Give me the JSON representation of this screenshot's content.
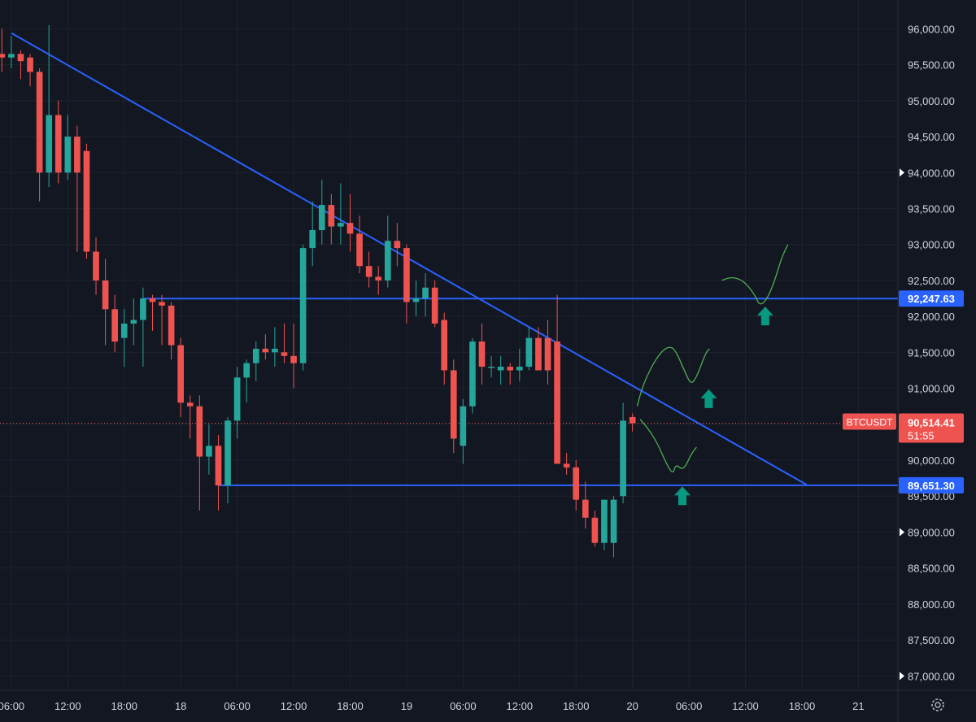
{
  "chart_data": {
    "type": "candlestick",
    "symbol": "BTCUSDT",
    "y_range": [
      86800,
      96400
    ],
    "y_ticks": [
      96000,
      95500,
      95000,
      94500,
      94000,
      93500,
      93000,
      92500,
      92000,
      91500,
      91000,
      90500,
      90000,
      89500,
      89000,
      88500,
      88000,
      87500,
      87000
    ],
    "y_tick_labels": [
      "96,000.00",
      "95,500.00",
      "95,000.00",
      "94,500.00",
      "94,000.00",
      "93,500.00",
      "93,000.00",
      "92,500.00",
      "92,000.00",
      "91,500.00",
      "91,000.00",
      "90,500.00",
      "90,000.00",
      "89,500.00",
      "89,000.00",
      "88,500.00",
      "88,000.00",
      "87,500.00",
      "87,000.00"
    ],
    "x_range_hours": [
      -1.2,
      94.2
    ],
    "x_ticks": [
      {
        "h": 0,
        "label": "06:00"
      },
      {
        "h": 6,
        "label": "12:00"
      },
      {
        "h": 12,
        "label": "18:00"
      },
      {
        "h": 18,
        "label": "18"
      },
      {
        "h": 24,
        "label": "06:00"
      },
      {
        "h": 30,
        "label": "12:00"
      },
      {
        "h": 36,
        "label": "18:00"
      },
      {
        "h": 42,
        "label": "19"
      },
      {
        "h": 48,
        "label": "06:00"
      },
      {
        "h": 54,
        "label": "12:00"
      },
      {
        "h": 60,
        "label": "18:00"
      },
      {
        "h": 66,
        "label": "20"
      },
      {
        "h": 72,
        "label": "06:00"
      },
      {
        "h": 78,
        "label": "12:00"
      },
      {
        "h": 84,
        "label": "18:00"
      },
      {
        "h": 90,
        "label": "21"
      }
    ],
    "candles": [
      {
        "h": -1,
        "o": 95650,
        "hi": 96000,
        "lo": 95400,
        "c": 95600
      },
      {
        "h": 0,
        "o": 95600,
        "hi": 95900,
        "lo": 95450,
        "c": 95650
      },
      {
        "h": 1,
        "o": 95650,
        "hi": 95700,
        "lo": 95300,
        "c": 95550
      },
      {
        "h": 2,
        "o": 95600,
        "hi": 95650,
        "lo": 95200,
        "c": 95400
      },
      {
        "h": 3,
        "o": 95400,
        "hi": 95450,
        "lo": 93600,
        "c": 94000
      },
      {
        "h": 4,
        "o": 94000,
        "hi": 96050,
        "lo": 93800,
        "c": 94800
      },
      {
        "h": 5,
        "o": 94800,
        "hi": 95000,
        "lo": 93850,
        "c": 94000
      },
      {
        "h": 6,
        "o": 94000,
        "hi": 94800,
        "lo": 93900,
        "c": 94500
      },
      {
        "h": 7,
        "o": 94500,
        "hi": 94650,
        "lo": 92900,
        "c": 94000
      },
      {
        "h": 8,
        "o": 94300,
        "hi": 94400,
        "lo": 92800,
        "c": 92900
      },
      {
        "h": 9,
        "o": 92900,
        "hi": 93100,
        "lo": 92300,
        "c": 92500
      },
      {
        "h": 10,
        "o": 92500,
        "hi": 92800,
        "lo": 91600,
        "c": 92100
      },
      {
        "h": 11,
        "o": 92100,
        "hi": 92300,
        "lo": 91500,
        "c": 91650
      },
      {
        "h": 12,
        "o": 91700,
        "hi": 92100,
        "lo": 91300,
        "c": 91900
      },
      {
        "h": 13,
        "o": 91900,
        "hi": 92250,
        "lo": 91600,
        "c": 91950
      },
      {
        "h": 14,
        "o": 91950,
        "hi": 92400,
        "lo": 91300,
        "c": 92250
      },
      {
        "h": 15,
        "o": 92250,
        "hi": 92300,
        "lo": 91800,
        "c": 92200
      },
      {
        "h": 16,
        "o": 92200,
        "hi": 92300,
        "lo": 91600,
        "c": 92150
      },
      {
        "h": 17,
        "o": 92150,
        "hi": 92200,
        "lo": 91400,
        "c": 91600
      },
      {
        "h": 18,
        "o": 91600,
        "hi": 91700,
        "lo": 90600,
        "c": 90800
      },
      {
        "h": 19,
        "o": 90800,
        "hi": 90900,
        "lo": 90300,
        "c": 90750
      },
      {
        "h": 20,
        "o": 90750,
        "hi": 90900,
        "lo": 89300,
        "c": 90050
      },
      {
        "h": 21,
        "o": 90050,
        "hi": 90500,
        "lo": 89800,
        "c": 90200
      },
      {
        "h": 22,
        "o": 90200,
        "hi": 90350,
        "lo": 89300,
        "c": 89650
      },
      {
        "h": 23,
        "o": 89650,
        "hi": 90600,
        "lo": 89400,
        "c": 90550
      },
      {
        "h": 24,
        "o": 90550,
        "hi": 91300,
        "lo": 90300,
        "c": 91150
      },
      {
        "h": 25,
        "o": 91150,
        "hi": 91400,
        "lo": 90800,
        "c": 91350
      },
      {
        "h": 26,
        "o": 91350,
        "hi": 91650,
        "lo": 91100,
        "c": 91550
      },
      {
        "h": 27,
        "o": 91550,
        "hi": 91750,
        "lo": 91400,
        "c": 91500
      },
      {
        "h": 28,
        "o": 91500,
        "hi": 91850,
        "lo": 91300,
        "c": 91550
      },
      {
        "h": 29,
        "o": 91500,
        "hi": 91900,
        "lo": 91350,
        "c": 91450
      },
      {
        "h": 30,
        "o": 91450,
        "hi": 91900,
        "lo": 91000,
        "c": 91350
      },
      {
        "h": 31,
        "o": 91350,
        "hi": 93000,
        "lo": 91250,
        "c": 92950
      },
      {
        "h": 32,
        "o": 92950,
        "hi": 93600,
        "lo": 92700,
        "c": 93200
      },
      {
        "h": 33,
        "o": 93200,
        "hi": 93900,
        "lo": 93000,
        "c": 93550
      },
      {
        "h": 34,
        "o": 93550,
        "hi": 93700,
        "lo": 93000,
        "c": 93250
      },
      {
        "h": 35,
        "o": 93250,
        "hi": 93850,
        "lo": 93000,
        "c": 93300
      },
      {
        "h": 36,
        "o": 93300,
        "hi": 93700,
        "lo": 92900,
        "c": 93150
      },
      {
        "h": 37,
        "o": 93150,
        "hi": 93400,
        "lo": 92600,
        "c": 92700
      },
      {
        "h": 38,
        "o": 92700,
        "hi": 92900,
        "lo": 92400,
        "c": 92550
      },
      {
        "h": 39,
        "o": 92550,
        "hi": 92700,
        "lo": 92300,
        "c": 92500
      },
      {
        "h": 40,
        "o": 92500,
        "hi": 93400,
        "lo": 92400,
        "c": 93050
      },
      {
        "h": 41,
        "o": 93050,
        "hi": 93300,
        "lo": 92700,
        "c": 92950
      },
      {
        "h": 42,
        "o": 92950,
        "hi": 93000,
        "lo": 91900,
        "c": 92200
      },
      {
        "h": 43,
        "o": 92200,
        "hi": 92500,
        "lo": 92000,
        "c": 92250
      },
      {
        "h": 44,
        "o": 92250,
        "hi": 92600,
        "lo": 92000,
        "c": 92400
      },
      {
        "h": 45,
        "o": 92400,
        "hi": 92500,
        "lo": 91850,
        "c": 91900
      },
      {
        "h": 46,
        "o": 91950,
        "hi": 92050,
        "lo": 91050,
        "c": 91250
      },
      {
        "h": 47,
        "o": 91250,
        "hi": 91400,
        "lo": 90100,
        "c": 90300
      },
      {
        "h": 48,
        "o": 90200,
        "hi": 90850,
        "lo": 89950,
        "c": 90750
      },
      {
        "h": 49,
        "o": 90750,
        "hi": 91700,
        "lo": 90650,
        "c": 91650
      },
      {
        "h": 50,
        "o": 91650,
        "hi": 91900,
        "lo": 91050,
        "c": 91300
      },
      {
        "h": 51,
        "o": 91300,
        "hi": 91450,
        "lo": 91150,
        "c": 91300
      },
      {
        "h": 52,
        "o": 91250,
        "hi": 91450,
        "lo": 91050,
        "c": 91300
      },
      {
        "h": 53,
        "o": 91300,
        "hi": 91350,
        "lo": 91050,
        "c": 91250
      },
      {
        "h": 54,
        "o": 91250,
        "hi": 91550,
        "lo": 91100,
        "c": 91300
      },
      {
        "h": 55,
        "o": 91300,
        "hi": 91850,
        "lo": 91250,
        "c": 91700
      },
      {
        "h": 56,
        "o": 91700,
        "hi": 91850,
        "lo": 91250,
        "c": 91250
      },
      {
        "h": 57,
        "o": 91700,
        "hi": 91950,
        "lo": 91050,
        "c": 91250
      },
      {
        "h": 58,
        "o": 91650,
        "hi": 92300,
        "lo": 90600,
        "c": 89950
      },
      {
        "h": 59,
        "o": 89950,
        "hi": 90100,
        "lo": 89800,
        "c": 89900
      },
      {
        "h": 60,
        "o": 89900,
        "hi": 90000,
        "lo": 89300,
        "c": 89450
      },
      {
        "h": 61,
        "o": 89450,
        "hi": 89700,
        "lo": 89050,
        "c": 89200
      },
      {
        "h": 62,
        "o": 89200,
        "hi": 89300,
        "lo": 88800,
        "c": 88850
      },
      {
        "h": 63,
        "o": 88850,
        "hi": 89350,
        "lo": 88750,
        "c": 89450
      },
      {
        "h": 64,
        "o": 88850,
        "hi": 89500,
        "lo": 88650,
        "c": 89450
      },
      {
        "h": 65,
        "o": 89500,
        "hi": 90800,
        "lo": 89400,
        "c": 90550
      },
      {
        "h": 66,
        "o": 90600,
        "hi": 90650,
        "lo": 90400,
        "c": 90514
      }
    ],
    "drawings": {
      "support_level": 89651.3,
      "support_label": "89,651.30",
      "resistance_level": 92247.63,
      "resistance_label": "92,247.63",
      "trendline_start": {
        "h": 0,
        "y": 95940
      },
      "trendline_end": {
        "h": 84.5,
        "y": 89660
      },
      "support_start_h": 22,
      "resistance_start_h": 14,
      "projection_1": [
        [
          66.8,
          90570
        ],
        [
          67.6,
          90450
        ],
        [
          68.6,
          90250
        ],
        [
          69.6,
          89950
        ],
        [
          70.3,
          89800
        ],
        [
          70.6,
          89950
        ],
        [
          71.4,
          89850
        ],
        [
          72.3,
          90100
        ],
        [
          72.8,
          90180
        ]
      ],
      "projection_2": [
        [
          66.5,
          90750
        ],
        [
          67,
          91000
        ],
        [
          68,
          91300
        ],
        [
          69,
          91500
        ],
        [
          69.8,
          91580
        ],
        [
          70.5,
          91550
        ],
        [
          71.5,
          91250
        ],
        [
          72.2,
          91050
        ],
        [
          72.8,
          91150
        ],
        [
          73.8,
          91500
        ],
        [
          74.2,
          91550
        ]
      ],
      "projection_3": [
        [
          75.5,
          92500
        ],
        [
          76.5,
          92550
        ],
        [
          77.8,
          92500
        ],
        [
          79,
          92300
        ],
        [
          79.5,
          92150
        ],
        [
          80.2,
          92220
        ],
        [
          81,
          92450
        ],
        [
          81.8,
          92800
        ],
        [
          82.5,
          93000
        ]
      ],
      "arrow_up_h": [
        71.3,
        74.1,
        80.1
      ],
      "arrow_up_y": [
        89500,
        90850,
        92000
      ]
    },
    "current_price": 90514.41,
    "current_price_label": "90,514.41",
    "countdown_label": "51:55",
    "colors": {
      "up": "#26a69a",
      "down": "#ef5350",
      "line": "#2962ff",
      "projection": "#4caf50",
      "arrow": "#089981",
      "background": "#131722",
      "grid": "#1e222d",
      "text": "#d1d4dc"
    }
  }
}
